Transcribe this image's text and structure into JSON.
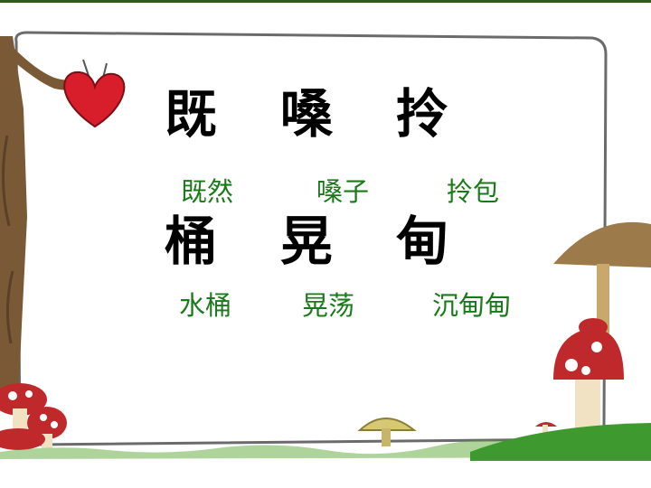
{
  "colors": {
    "character": "#000000",
    "word": "#1a7a1a",
    "heart": "#d81e2b",
    "grass": "#3e9a2e",
    "frame": "#6b6b6b",
    "tree": "#7a5a36",
    "mushroom_red": "#c0292b"
  },
  "rows": [
    {
      "characters": [
        "既",
        "嗓",
        "拎"
      ],
      "words": [
        "既然",
        "嗓子",
        "拎包"
      ]
    },
    {
      "characters": [
        "桶",
        "晃",
        "甸"
      ],
      "words": [
        "水桶",
        "晃荡",
        "沉甸甸"
      ]
    }
  ]
}
